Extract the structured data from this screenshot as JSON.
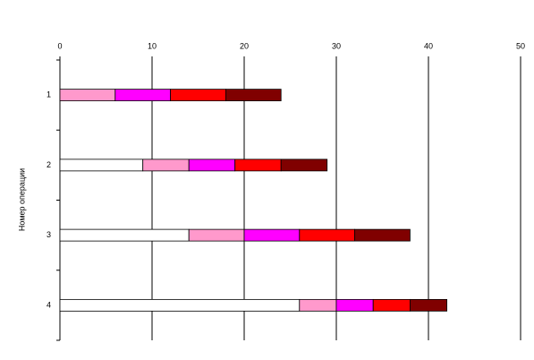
{
  "chart_data": {
    "type": "stacked-barh",
    "y_label": "Номер операции",
    "categories": [
      "1",
      "2",
      "3",
      "4"
    ],
    "series": [
      {
        "color": "#ffffff",
        "values": [
          0,
          9,
          14,
          26
        ]
      },
      {
        "color": "#ff99cc",
        "values": [
          6,
          5,
          6,
          4
        ]
      },
      {
        "color": "#ff00ff",
        "values": [
          6,
          5,
          6,
          4
        ]
      },
      {
        "color": "#ff0000",
        "values": [
          6,
          5,
          6,
          4
        ]
      },
      {
        "color": "#800000",
        "values": [
          6,
          5,
          6,
          4
        ]
      }
    ],
    "xlim": [
      0,
      50
    ],
    "xticks": [
      0,
      10,
      20,
      30,
      40,
      50
    ],
    "grid": true
  }
}
